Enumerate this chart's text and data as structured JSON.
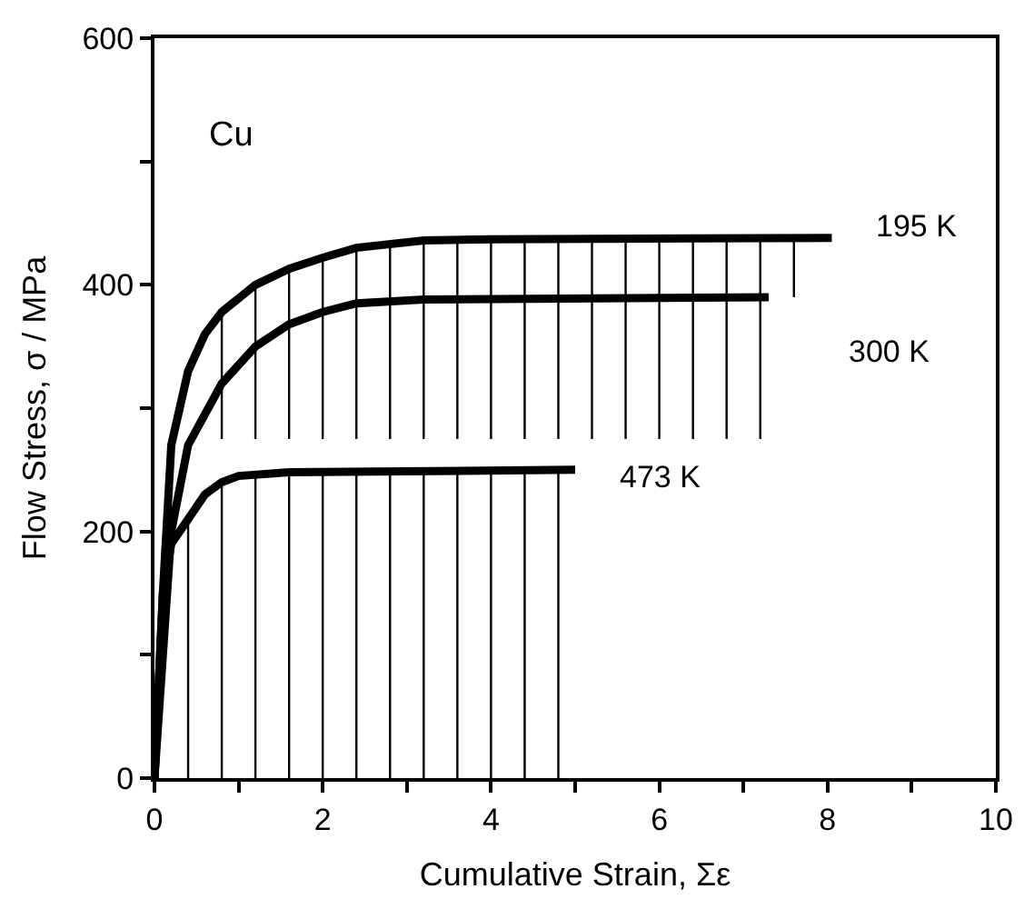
{
  "chart_data": {
    "type": "line",
    "xlabel": "Cumulative Strain, Σε",
    "ylabel": "Flow Stress, σ / MPa",
    "xlim": [
      0,
      10
    ],
    "ylim": [
      0,
      600
    ],
    "xticks": [
      0,
      {
        "value": 1,
        "label": null
      },
      2,
      {
        "value": 3,
        "label": null
      },
      4,
      {
        "value": 5,
        "label": null
      },
      6,
      {
        "value": 7,
        "label": null
      },
      8,
      {
        "value": 9,
        "label": null
      },
      10
    ],
    "yticks": [
      0,
      {
        "value": 100,
        "label": null
      },
      200,
      {
        "value": 300,
        "label": null
      },
      400,
      {
        "value": 500,
        "label": null
      },
      600
    ],
    "legend": false,
    "marker": "none",
    "line_style": "solid",
    "series": [
      {
        "name": "195 K",
        "color": "#000000",
        "x": [
          0,
          0.1,
          0.2,
          0.4,
          0.6,
          0.8,
          1.2,
          1.6,
          2.0,
          2.4,
          3.2,
          4.0,
          8.05
        ],
        "values": [
          0,
          150,
          270,
          330,
          360,
          378,
          400,
          413,
          422,
          430,
          436,
          437,
          438
        ]
      },
      {
        "name": "300 K",
        "color": "#000000",
        "x": [
          0,
          0.2,
          0.4,
          0.8,
          1.2,
          1.6,
          2.0,
          2.4,
          3.2,
          7.3
        ],
        "values": [
          0,
          200,
          270,
          320,
          350,
          368,
          378,
          385,
          388,
          390
        ]
      },
      {
        "name": "473 K",
        "color": "#000000",
        "x": [
          0,
          0.1,
          0.2,
          0.4,
          0.6,
          0.8,
          1.0,
          1.6,
          5.0
        ],
        "values": [
          0,
          150,
          190,
          210,
          230,
          240,
          245,
          248,
          250
        ]
      },
      {
        "color": "#000000",
        "x": [
          0.4,
          0.4,
          null,
          0.8,
          0.8,
          null,
          1.2,
          1.2,
          null,
          1.6,
          1.6,
          null,
          2.0,
          2.0,
          null,
          2.4,
          2.4,
          null,
          2.8,
          2.8,
          null,
          3.2,
          3.2,
          null,
          3.6,
          3.6,
          null,
          4.0,
          4.0,
          null,
          4.4,
          4.4,
          null,
          4.8,
          4.8
        ],
        "values": [
          0,
          210,
          null,
          0,
          240,
          null,
          0,
          246,
          null,
          0,
          248,
          null,
          0,
          249,
          null,
          0,
          250,
          null,
          0,
          250,
          null,
          0,
          250,
          null,
          0,
          250,
          null,
          0,
          250,
          null,
          0,
          250,
          null,
          0,
          250
        ]
      },
      {
        "color": "#000000",
        "x": [
          0.8,
          0.8,
          null,
          1.2,
          1.2,
          null,
          1.6,
          1.6,
          null,
          2.0,
          2.0,
          null,
          2.4,
          2.4,
          null,
          2.8,
          2.8,
          null,
          3.2,
          3.2,
          null,
          3.6,
          3.6,
          null,
          4.0,
          4.0,
          null,
          4.4,
          4.4,
          null,
          4.8,
          4.8,
          null,
          5.2,
          5.2,
          null,
          5.6,
          5.6,
          null,
          6.0,
          6.0,
          null,
          6.4,
          6.4,
          null,
          6.8,
          6.8,
          null,
          7.2,
          7.2,
          null,
          7.6,
          7.6
        ],
        "values": [
          275,
          378,
          null,
          275,
          400,
          null,
          275,
          413,
          null,
          275,
          422,
          null,
          275,
          430,
          null,
          275,
          433,
          null,
          275,
          436,
          null,
          275,
          437,
          null,
          275,
          437,
          null,
          275,
          437,
          null,
          275,
          437,
          null,
          275,
          437,
          null,
          275,
          437,
          null,
          275,
          437,
          null,
          275,
          437,
          null,
          275,
          437,
          null,
          275,
          437,
          null,
          390,
          437
        ]
      }
    ],
    "annotations": [
      "Cu"
    ]
  }
}
